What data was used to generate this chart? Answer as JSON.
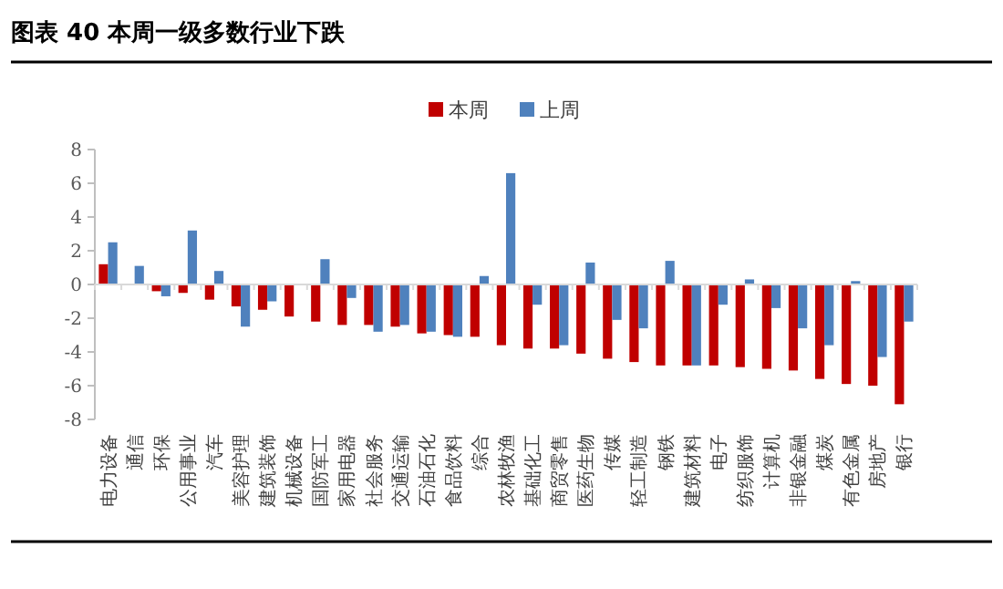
{
  "chart_data": {
    "type": "bar",
    "title": "图表 40 本周一级多数行业下跌",
    "categories": [
      "电力设备",
      "通信",
      "环保",
      "公用事业",
      "汽车",
      "美容护理",
      "建筑装饰",
      "机械设备",
      "国防军工",
      "家用电器",
      "社会服务",
      "交通运输",
      "石油石化",
      "食品饮料",
      "综合",
      "农林牧渔",
      "基础化工",
      "商贸零售",
      "医药生物",
      "传媒",
      "轻工制造",
      "钢铁",
      "建筑材料",
      "电子",
      "纺织服饰",
      "计算机",
      "非银金融",
      "煤炭",
      "有色金属",
      "房地产",
      "银行"
    ],
    "series": [
      {
        "name": "本周",
        "color": "#c00000",
        "values": [
          1.2,
          0,
          -0.4,
          -0.5,
          -0.9,
          -1.3,
          -1.5,
          -1.9,
          -2.2,
          -2.4,
          -2.4,
          -2.5,
          -2.9,
          -3.0,
          -3.1,
          -3.6,
          -3.8,
          -3.8,
          -4.1,
          -4.4,
          -4.6,
          -4.8,
          -4.8,
          -4.8,
          -4.9,
          -5.0,
          -5.1,
          -5.6,
          -5.9,
          -6.0,
          -7.1
        ]
      },
      {
        "name": "上周",
        "color": "#4f81bd",
        "values": [
          2.5,
          1.1,
          -0.7,
          3.2,
          0.8,
          -2.5,
          -1.0,
          null,
          1.5,
          -0.8,
          -2.8,
          -2.4,
          -2.8,
          -3.1,
          0.5,
          6.6,
          -1.2,
          -3.6,
          1.3,
          -2.1,
          -2.6,
          1.4,
          -4.8,
          -1.2,
          0.3,
          -1.4,
          -2.6,
          -3.6,
          0.2,
          -4.3,
          -2.2
        ]
      }
    ],
    "ylim": [
      -8,
      8
    ],
    "yticks": [
      -8,
      -6,
      -4,
      -2,
      0,
      2,
      4,
      6,
      8
    ],
    "legend": "top"
  }
}
